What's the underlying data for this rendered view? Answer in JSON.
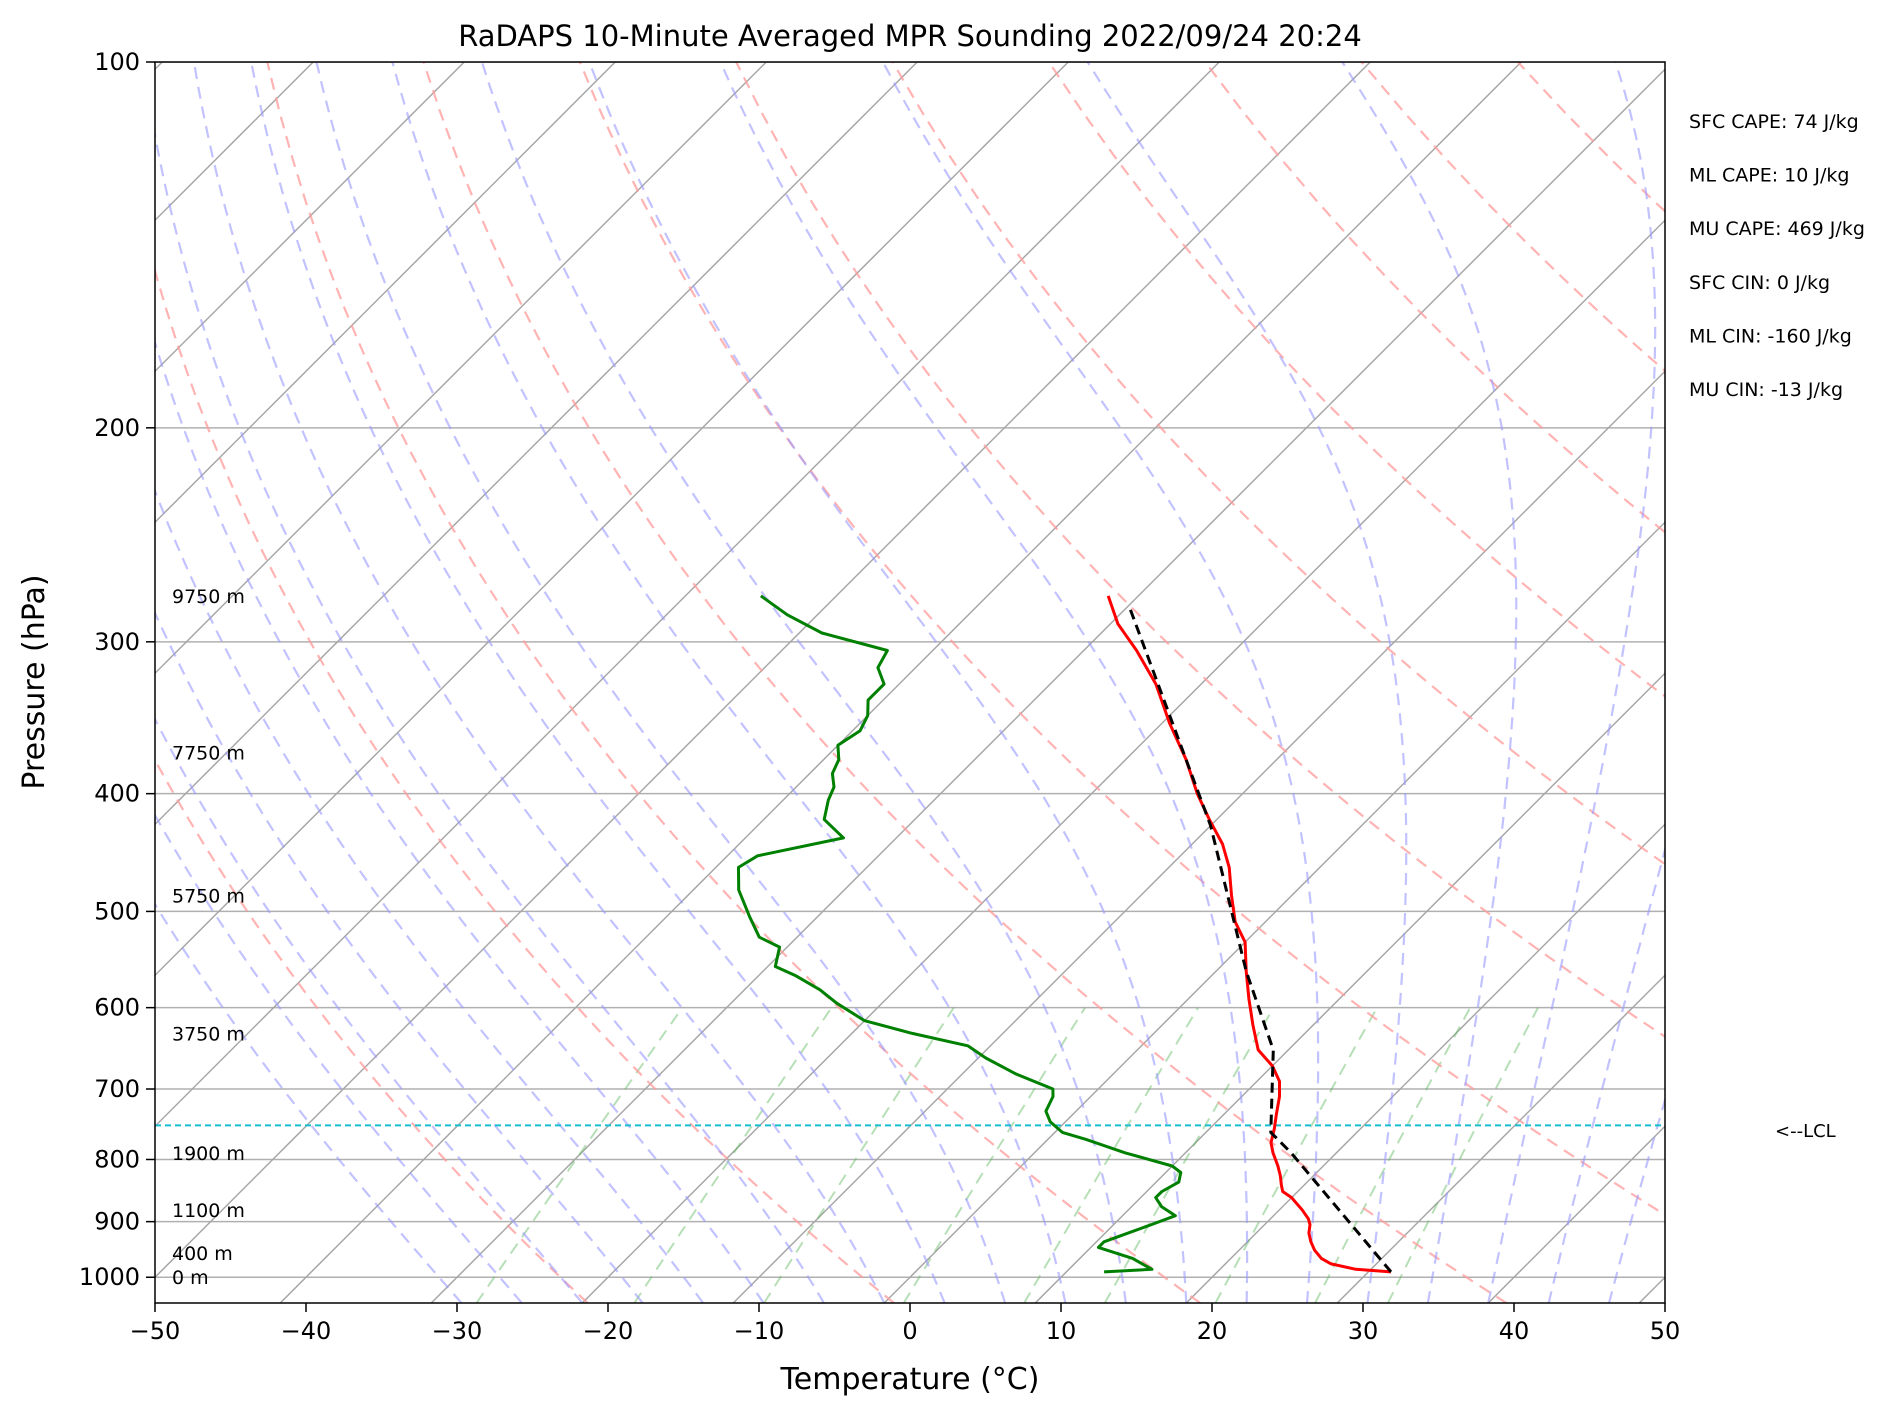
{
  "chart_data": {
    "type": "skew-t",
    "title": "RaDAPS 10-Minute Averaged MPR Sounding 2022/09/24 20:24",
    "xlabel": "Temperature (°C)",
    "ylabel": "Pressure (hPa)",
    "xlim": [
      -50,
      50
    ],
    "ylim": [
      1050,
      100
    ],
    "y_scale": "log",
    "grid": true,
    "x_ticks": [
      -50,
      -40,
      -30,
      -20,
      -10,
      0,
      10,
      20,
      30,
      40,
      50
    ],
    "x_tick_labels": [
      "−50",
      "−40",
      "−30",
      "−20",
      "−10",
      "0",
      "10",
      "20",
      "30",
      "40",
      "50"
    ],
    "y_ticks": [
      1000,
      900,
      800,
      700,
      600,
      500,
      400,
      300,
      200,
      100
    ],
    "y_tick_labels": [
      "1000",
      "900",
      "800",
      "700",
      "600",
      "500",
      "400",
      "300",
      "200",
      "100"
    ],
    "height_labels": [
      {
        "p": 1000,
        "text": "0 m"
      },
      {
        "p": 955,
        "text": "400 m"
      },
      {
        "p": 880,
        "text": "1100 m"
      },
      {
        "p": 790,
        "text": "1900 m"
      },
      {
        "p": 630,
        "text": "3750 m"
      },
      {
        "p": 485,
        "text": "5750 m"
      },
      {
        "p": 370,
        "text": "7750 m"
      },
      {
        "p": 275,
        "text": "9750 m"
      }
    ],
    "stats": [
      "SFC CAPE: 74 J/kg",
      "ML CAPE: 10 J/kg",
      "MU CAPE: 469 J/kg",
      "SFC CIN: 0 J/kg",
      "ML CIN: -160 J/kg",
      "MU CIN: -13 J/kg"
    ],
    "lcl": {
      "p": 750,
      "label": "<--LCL",
      "color": "#17becf"
    },
    "series": [
      {
        "role": "temperature",
        "color": "#ff0000",
        "points": [
          [
            31.5,
            990
          ],
          [
            29,
            985
          ],
          [
            27,
            975
          ],
          [
            26,
            965
          ],
          [
            25,
            950
          ],
          [
            24.2,
            935
          ],
          [
            23.5,
            920
          ],
          [
            23,
            905
          ],
          [
            22.5,
            895
          ],
          [
            21.5,
            880
          ],
          [
            20,
            860
          ],
          [
            19,
            850
          ],
          [
            18.5,
            840
          ],
          [
            17.8,
            825
          ],
          [
            17,
            810
          ],
          [
            15.8,
            790
          ],
          [
            15,
            775
          ],
          [
            14.3,
            755
          ],
          [
            13.5,
            735
          ],
          [
            12.5,
            710
          ],
          [
            11.5,
            690
          ],
          [
            10,
            670
          ],
          [
            8,
            650
          ],
          [
            6,
            620
          ],
          [
            4,
            590
          ],
          [
            2,
            560
          ],
          [
            0,
            530
          ],
          [
            -2,
            510
          ],
          [
            -4,
            485
          ],
          [
            -6,
            460
          ],
          [
            -8,
            440
          ],
          [
            -10.5,
            420
          ],
          [
            -13,
            400
          ],
          [
            -16,
            375
          ],
          [
            -19.5,
            350
          ],
          [
            -23,
            325
          ],
          [
            -26.5,
            305
          ],
          [
            -29.5,
            290
          ],
          [
            -32,
            275
          ]
        ]
      },
      {
        "role": "dewpoint",
        "color": "#008000",
        "points": [
          [
            12.5,
            990
          ],
          [
            15.5,
            985
          ],
          [
            14.5,
            975
          ],
          [
            13.5,
            965
          ],
          [
            12,
            955
          ],
          [
            10.5,
            945
          ],
          [
            10.5,
            935
          ],
          [
            11.5,
            920
          ],
          [
            12.5,
            905
          ],
          [
            13.5,
            890
          ],
          [
            12,
            875
          ],
          [
            11,
            860
          ],
          [
            11,
            850
          ],
          [
            11.5,
            835
          ],
          [
            11,
            820
          ],
          [
            10,
            810
          ],
          [
            6,
            790
          ],
          [
            2.5,
            770
          ],
          [
            0.5,
            760
          ],
          [
            -1,
            745
          ],
          [
            -2,
            730
          ],
          [
            -2.5,
            710
          ],
          [
            -3,
            700
          ],
          [
            -6.5,
            680
          ],
          [
            -9.5,
            660
          ],
          [
            -11.5,
            645
          ],
          [
            -16,
            630
          ],
          [
            -20,
            615
          ],
          [
            -23,
            595
          ],
          [
            -25,
            580
          ],
          [
            -27.5,
            565
          ],
          [
            -29.5,
            555
          ],
          [
            -30.5,
            535
          ],
          [
            -32.5,
            525
          ],
          [
            -34.5,
            505
          ],
          [
            -37,
            480
          ],
          [
            -38.5,
            460
          ],
          [
            -38,
            450
          ],
          [
            -33.5,
            435
          ],
          [
            -36,
            420
          ],
          [
            -37,
            405
          ],
          [
            -37.5,
            395
          ],
          [
            -38.5,
            385
          ],
          [
            -39,
            375
          ],
          [
            -40,
            365
          ],
          [
            -39.5,
            355
          ],
          [
            -40,
            345
          ],
          [
            -41,
            335
          ],
          [
            -41,
            325
          ],
          [
            -42.5,
            315
          ],
          [
            -43,
            305
          ],
          [
            -48.5,
            295
          ],
          [
            -52,
            285
          ],
          [
            -55,
            275
          ]
        ]
      },
      {
        "role": "parcel",
        "color": "#000000",
        "dashed": true,
        "points": [
          [
            31.5,
            990
          ],
          [
            17,
            790
          ],
          [
            14.3,
            760
          ],
          [
            9,
            650
          ],
          [
            2,
            560
          ],
          [
            -10,
            425
          ],
          [
            -30,
            280
          ]
        ]
      }
    ]
  }
}
